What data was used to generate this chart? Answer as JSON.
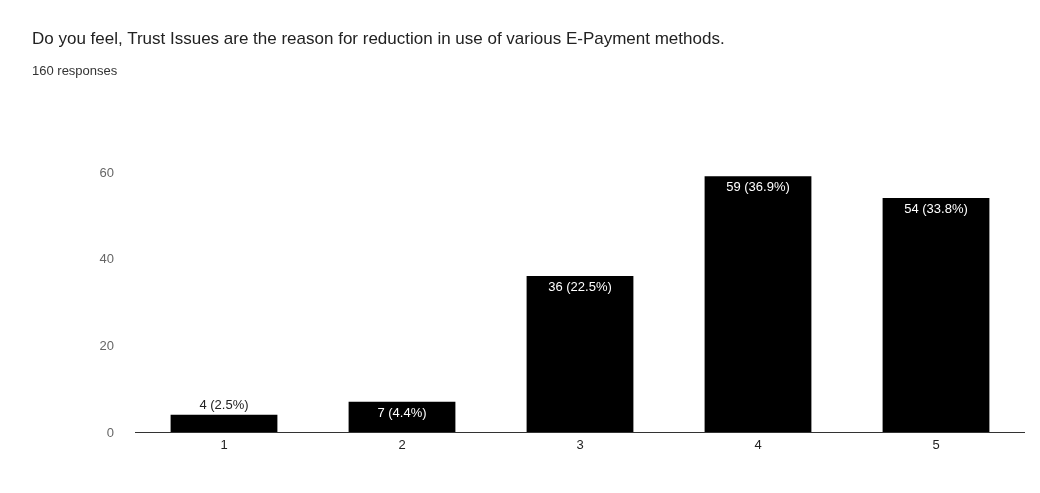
{
  "chart_data": {
    "type": "bar",
    "title": "Do you feel, Trust Issues are the reason for reduction in use of various E-Payment methods.",
    "subtitle": "160 responses",
    "categories": [
      "1",
      "2",
      "3",
      "4",
      "5"
    ],
    "values": [
      4,
      7,
      36,
      59,
      54
    ],
    "value_labels": [
      "4 (2.5%)",
      "7 (4.4%)",
      "36 (22.5%)",
      "59 (36.9%)",
      "54 (33.8%)"
    ],
    "color": "#000000",
    "ylim": [
      0,
      60
    ],
    "yticks": [
      0,
      20,
      40,
      60
    ]
  }
}
